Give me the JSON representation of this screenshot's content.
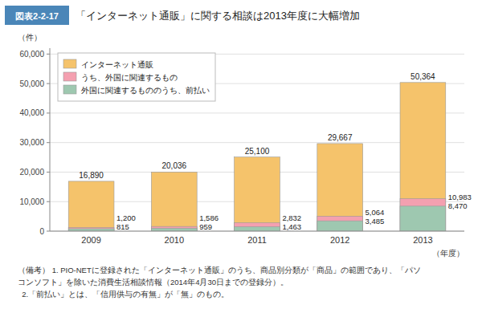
{
  "chart_data": {
    "type": "bar",
    "title": "「インターネット通販」に関する相談は2013年度に大幅増加",
    "subtitle": "図表2-2-17",
    "xlabel": "（年度）",
    "ylabel": "（件）",
    "categories": [
      "2009",
      "2010",
      "2011",
      "2012",
      "2013"
    ],
    "series": [
      {
        "name": "インターネット通販",
        "color": "#F5C36B",
        "values": [
          16890,
          20036,
          25100,
          29667,
          50364
        ],
        "value_labels": [
          "16,890",
          "20,036",
          "25,100",
          "29,667",
          "50,364"
        ]
      },
      {
        "name": "うち、外国に関連するもの",
        "color": "#F4A0B0",
        "values": [
          1200,
          1586,
          2832,
          5064,
          10983
        ],
        "value_labels": [
          "1,200",
          "1,586",
          "2,832",
          "5,064",
          "10,983"
        ]
      },
      {
        "name": "外国に関連するもののうち、前払い",
        "color": "#9EC8B0",
        "values": [
          815,
          959,
          1463,
          3485,
          8470
        ],
        "value_labels": [
          "815",
          "959",
          "1,463",
          "3,485",
          "8,470"
        ]
      }
    ],
    "ylim": [
      0,
      62000
    ],
    "yticks": [
      0,
      {
        "value": 10000,
        "label": "10,000"
      },
      {
        "value": 20000,
        "label": "20,000"
      },
      {
        "value": 30000,
        "label": "30,000"
      },
      {
        "value": 40000,
        "label": "40,000"
      },
      {
        "value": 50000,
        "label": "50,000"
      },
      {
        "value": 60000,
        "label": "60,000"
      }
    ],
    "grid": true,
    "legend": "upper left",
    "data_labels": true,
    "annotations": [
      "（備考） 1. PIO-NETに登録された「インターネット通販」のうち、商品別分類が「商品」の範囲であり、「パソ",
      "コンソフト」を除いた消費生活相談情報（2014年4月30日までの登録分）。",
      "  2.「前払い」とは、「信用供与の有無」が「無」のもの。"
    ]
  }
}
